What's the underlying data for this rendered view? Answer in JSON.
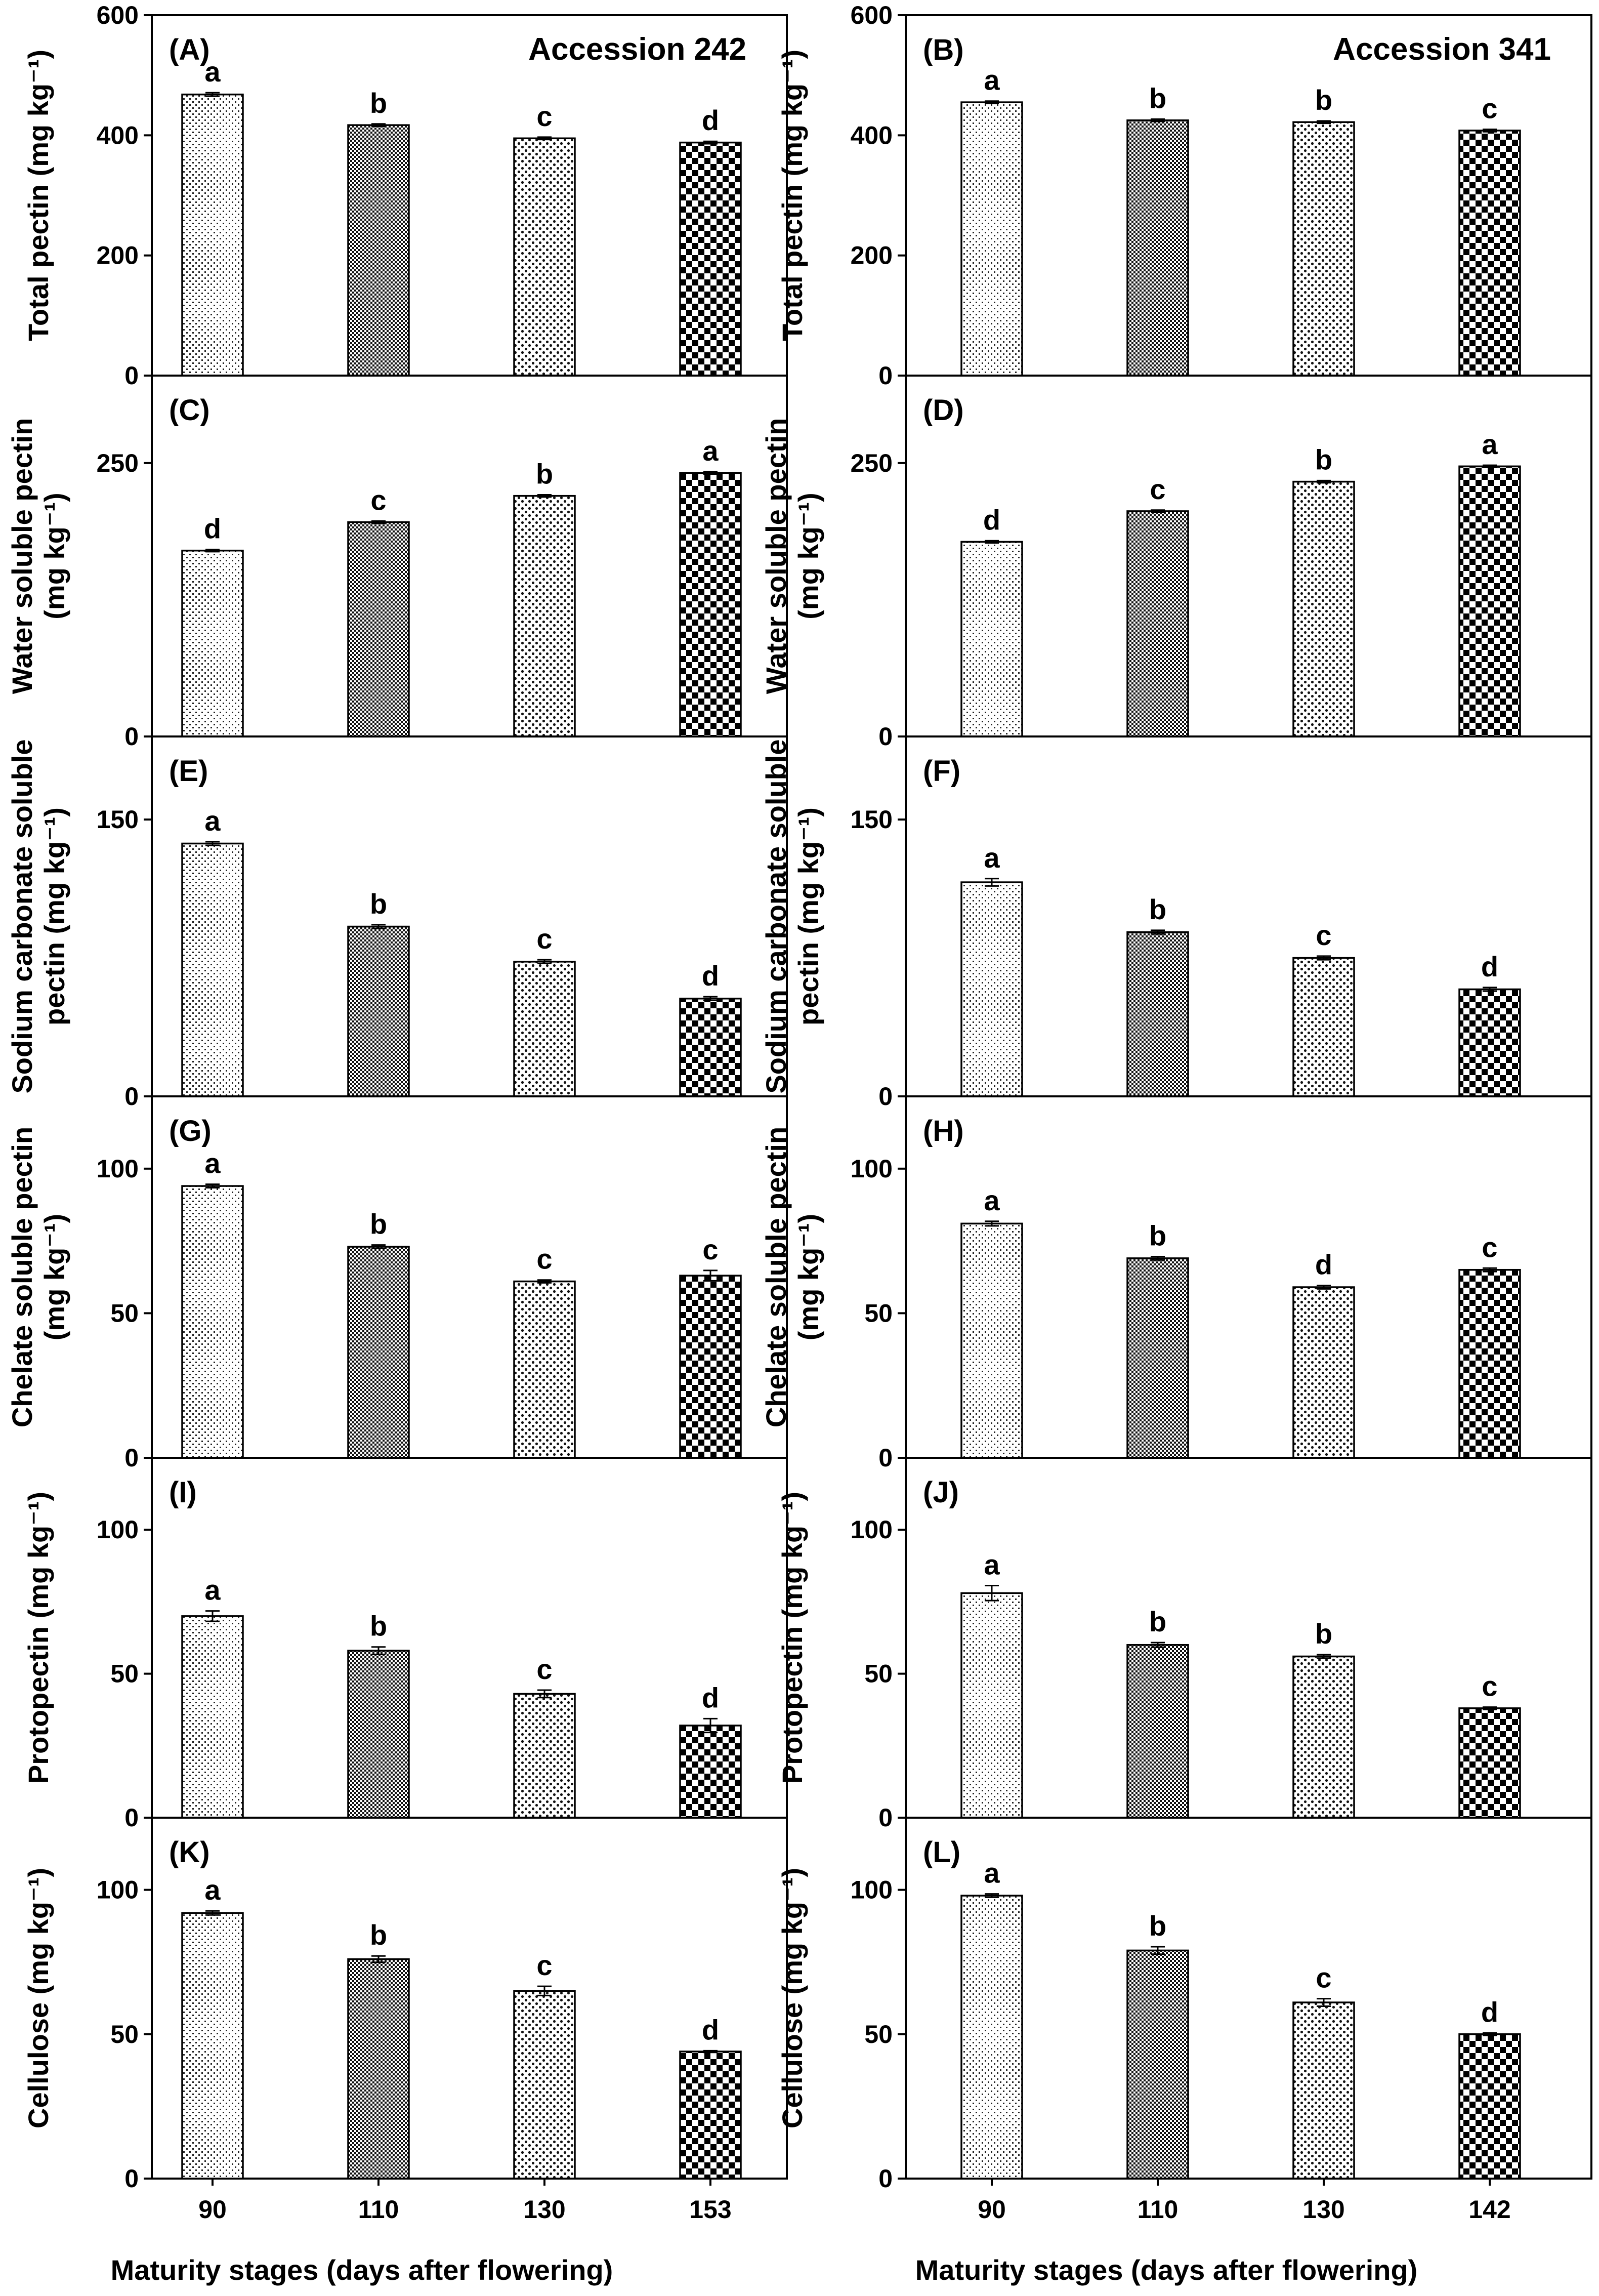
{
  "figure": {
    "left_xlabel": "Maturity stages (days after flowering)",
    "right_xlabel": "Maturity stages (days after flowering)"
  },
  "chart_data": [
    {
      "type": "bar",
      "panel_label": "(A)",
      "accession": "Accession 242",
      "categories": [
        "90",
        "110",
        "130",
        "153"
      ],
      "values": [
        468,
        417,
        395,
        388
      ],
      "errors": [
        3,
        2,
        2,
        2
      ],
      "significance": [
        "a",
        "b",
        "c",
        "d"
      ],
      "ylabel_lines": [
        "Total pectin (mg kg⁻¹)"
      ],
      "ylim": [
        0,
        600
      ],
      "yticks": [
        "0",
        "200",
        "400",
        "600"
      ],
      "xlabel": "",
      "grid": false
    },
    {
      "type": "bar",
      "panel_label": "(B)",
      "accession": "Accession 341",
      "categories": [
        "90",
        "110",
        "130",
        "142"
      ],
      "values": [
        455,
        425,
        422,
        408
      ],
      "errors": [
        2,
        2,
        2,
        2
      ],
      "significance": [
        "a",
        "b",
        "b",
        "c"
      ],
      "ylabel_lines": [
        "Total pectin (mg kg⁻¹)"
      ],
      "ylim": [
        0,
        600
      ],
      "yticks": [
        "0",
        "200",
        "400",
        "600"
      ],
      "xlabel": "",
      "grid": false
    },
    {
      "type": "bar",
      "panel_label": "(C)",
      "accession": "",
      "categories": [
        "90",
        "110",
        "130",
        "153"
      ],
      "values": [
        170,
        196,
        220,
        241
      ],
      "errors": [
        1,
        1,
        1,
        1
      ],
      "significance": [
        "d",
        "c",
        "b",
        "a"
      ],
      "ylabel_lines": [
        "Water soluble pectin",
        "(mg kg⁻¹)"
      ],
      "ylim": [
        0,
        330
      ],
      "yticks": [
        "0",
        "250"
      ],
      "xlabel": "",
      "grid": false
    },
    {
      "type": "bar",
      "panel_label": "(D)",
      "accession": "",
      "categories": [
        "90",
        "110",
        "130",
        "142"
      ],
      "values": [
        178,
        206,
        233,
        247
      ],
      "errors": [
        1,
        1,
        1,
        1
      ],
      "significance": [
        "d",
        "c",
        "b",
        "a"
      ],
      "ylabel_lines": [
        "Water soluble pectin",
        "(mg kg⁻¹)"
      ],
      "ylim": [
        0,
        330
      ],
      "yticks": [
        "0",
        "250"
      ],
      "xlabel": "",
      "grid": false
    },
    {
      "type": "bar",
      "panel_label": "(E)",
      "accession": "",
      "categories": [
        "90",
        "110",
        "130",
        "153"
      ],
      "values": [
        137,
        92,
        73,
        53
      ],
      "errors": [
        1,
        1,
        1,
        1
      ],
      "significance": [
        "a",
        "b",
        "c",
        "d"
      ],
      "ylabel_lines": [
        "Sodium carbonate soluble",
        "pectin (mg kg⁻¹)"
      ],
      "ylim": [
        0,
        195
      ],
      "yticks": [
        "0",
        "150"
      ],
      "xlabel": "",
      "grid": false
    },
    {
      "type": "bar",
      "panel_label": "(F)",
      "accession": "",
      "categories": [
        "90",
        "110",
        "130",
        "142"
      ],
      "values": [
        116,
        89,
        75,
        58
      ],
      "errors": [
        2,
        1,
        1,
        1
      ],
      "significance": [
        "a",
        "b",
        "c",
        "d"
      ],
      "ylabel_lines": [
        "Sodium carbonate soluble",
        "pectin (mg kg⁻¹)"
      ],
      "ylim": [
        0,
        195
      ],
      "yticks": [
        "0",
        "150"
      ],
      "xlabel": "",
      "grid": false
    },
    {
      "type": "bar",
      "panel_label": "(G)",
      "accession": "",
      "categories": [
        "90",
        "110",
        "130",
        "153"
      ],
      "values": [
        94,
        73,
        61,
        63
      ],
      "errors": [
        0.6,
        0.6,
        0.5,
        1.8
      ],
      "significance": [
        "a",
        "b",
        "c",
        "c"
      ],
      "ylabel_lines": [
        "Chelate soluble pectin",
        "(mg kg⁻¹)"
      ],
      "ylim": [
        0,
        125
      ],
      "yticks": [
        "0",
        "50",
        "100"
      ],
      "xlabel": "",
      "grid": false
    },
    {
      "type": "bar",
      "panel_label": "(H)",
      "accession": "",
      "categories": [
        "90",
        "110",
        "130",
        "142"
      ],
      "values": [
        81,
        69,
        59,
        65
      ],
      "errors": [
        0.8,
        0.6,
        0.6,
        0.6
      ],
      "significance": [
        "a",
        "b",
        "d",
        "c"
      ],
      "ylabel_lines": [
        "Chelate soluble pectin",
        "(mg kg⁻¹)"
      ],
      "ylim": [
        0,
        125
      ],
      "yticks": [
        "0",
        "50",
        "100"
      ],
      "xlabel": "",
      "grid": false
    },
    {
      "type": "bar",
      "panel_label": "(I)",
      "accession": "",
      "categories": [
        "90",
        "110",
        "130",
        "153"
      ],
      "values": [
        70,
        58,
        43,
        32
      ],
      "errors": [
        1.8,
        1.3,
        1.3,
        2.4
      ],
      "significance": [
        "a",
        "b",
        "c",
        "d"
      ],
      "ylabel_lines": [
        "Protopectin (mg kg⁻¹)"
      ],
      "ylim": [
        0,
        125
      ],
      "yticks": [
        "0",
        "50",
        "100"
      ],
      "xlabel": "",
      "grid": false
    },
    {
      "type": "bar",
      "panel_label": "(J)",
      "accession": "",
      "categories": [
        "90",
        "110",
        "130",
        "142"
      ],
      "values": [
        78,
        60,
        56,
        38
      ],
      "errors": [
        2.6,
        0.8,
        0.6,
        0.4
      ],
      "significance": [
        "a",
        "b",
        "b",
        "c"
      ],
      "ylabel_lines": [
        "Protopectin (mg kg⁻¹)"
      ],
      "ylim": [
        0,
        125
      ],
      "yticks": [
        "0",
        "50",
        "100"
      ],
      "xlabel": "",
      "grid": false
    },
    {
      "type": "bar",
      "panel_label": "(K)",
      "accession": "",
      "categories": [
        "90",
        "110",
        "130",
        "153"
      ],
      "values": [
        92,
        76,
        65,
        44
      ],
      "errors": [
        0.7,
        1.1,
        1.6,
        0.3
      ],
      "significance": [
        "a",
        "b",
        "c",
        "d"
      ],
      "ylabel_lines": [
        "Cellulose (mg kg⁻¹)"
      ],
      "ylim": [
        0,
        125
      ],
      "yticks": [
        "0",
        "50",
        "100"
      ],
      "xlabel": "",
      "grid": false
    },
    {
      "type": "bar",
      "panel_label": "(L)",
      "accession": "",
      "categories": [
        "90",
        "110",
        "130",
        "142"
      ],
      "values": [
        98,
        79,
        61,
        50
      ],
      "errors": [
        0.6,
        1.3,
        1.3,
        0.4
      ],
      "significance": [
        "a",
        "b",
        "c",
        "d"
      ],
      "ylabel_lines": [
        "Cellulose (mg kg⁻¹)"
      ],
      "ylim": [
        0,
        125
      ],
      "yticks": [
        "0",
        "50",
        "100"
      ],
      "xlabel": "",
      "grid": false
    }
  ]
}
